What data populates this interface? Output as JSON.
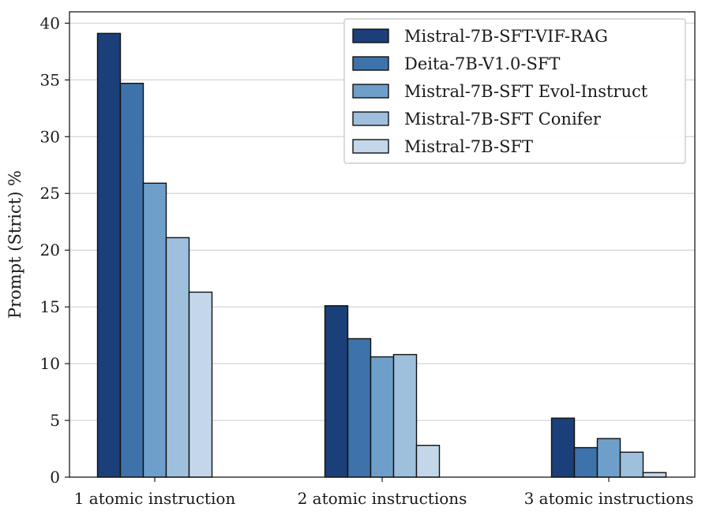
{
  "chart_data": {
    "type": "bar",
    "title": "",
    "xlabel": "",
    "ylabel": "Prompt (Strict) %",
    "ylim": [
      0,
      41
    ],
    "yticks": [
      0,
      5,
      10,
      15,
      20,
      25,
      30,
      35,
      40
    ],
    "grid": "y",
    "legend_position": "top-right",
    "categories": [
      "1 atomic instruction",
      "2 atomic instructions",
      "3 atomic instructions"
    ],
    "series": [
      {
        "name": "Mistral-7B-SFT-VIF-RAG",
        "color": "#1b3f78",
        "values": [
          39.1,
          15.1,
          5.2
        ]
      },
      {
        "name": "Deita-7B-V1.0-SFT",
        "color": "#3e72aa",
        "values": [
          34.7,
          12.2,
          2.6
        ]
      },
      {
        "name": "Mistral-7B-SFT Evol-Instruct",
        "color": "#6e9fcb",
        "values": [
          25.9,
          10.6,
          3.4
        ]
      },
      {
        "name": "Mistral-7B-SFT Conifer",
        "color": "#9ec0dd",
        "values": [
          21.1,
          10.8,
          2.2
        ]
      },
      {
        "name": "Mistral-7B-SFT",
        "color": "#c4d7ea",
        "values": [
          16.3,
          2.8,
          0.4
        ]
      }
    ]
  }
}
